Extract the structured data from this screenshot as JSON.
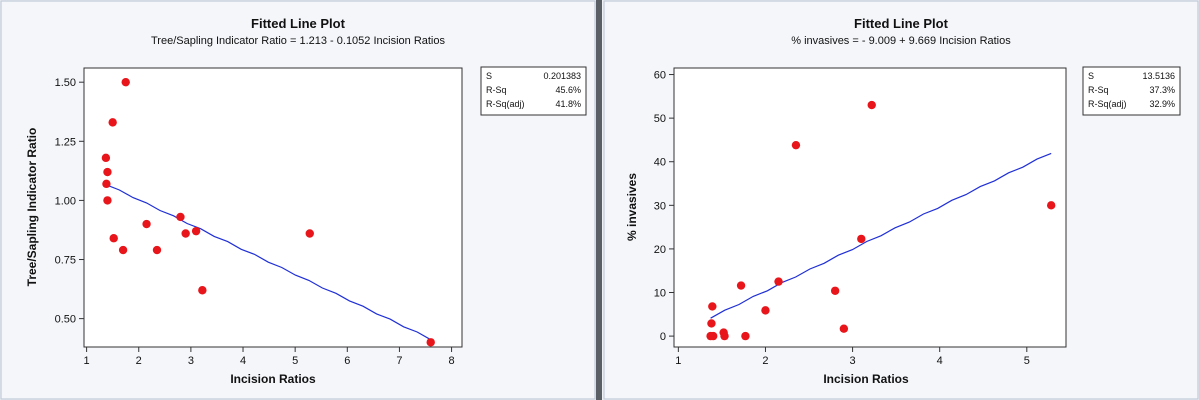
{
  "chart_data": [
    {
      "type": "scatter",
      "title": "Fitted Line Plot",
      "subtitle": "Tree/Sapling Indicator Ratio =  1.213 - 0.1052 Incision Ratios",
      "xlabel": "Incision Ratios",
      "ylabel": "Tree/Sapling Indicator Ratio",
      "xlim": [
        0.95,
        8.2
      ],
      "ylim": [
        0.38,
        1.56
      ],
      "xticks": [
        1,
        2,
        3,
        4,
        5,
        6,
        7,
        8
      ],
      "yticks": [
        0.5,
        0.75,
        1.0,
        1.25,
        1.5
      ],
      "ytick_labels": [
        "0.50",
        "0.75",
        "1.00",
        "1.25",
        "1.50"
      ],
      "points": [
        {
          "x": 1.37,
          "y": 1.18
        },
        {
          "x": 1.4,
          "y": 1.12
        },
        {
          "x": 1.38,
          "y": 1.07
        },
        {
          "x": 1.4,
          "y": 1.0
        },
        {
          "x": 1.5,
          "y": 1.33
        },
        {
          "x": 1.52,
          "y": 0.84
        },
        {
          "x": 1.7,
          "y": 0.79
        },
        {
          "x": 1.75,
          "y": 1.5
        },
        {
          "x": 2.15,
          "y": 0.9
        },
        {
          "x": 2.35,
          "y": 0.79
        },
        {
          "x": 2.8,
          "y": 0.93
        },
        {
          "x": 2.9,
          "y": 0.86
        },
        {
          "x": 3.1,
          "y": 0.87
        },
        {
          "x": 3.22,
          "y": 0.62
        },
        {
          "x": 5.28,
          "y": 0.86
        },
        {
          "x": 7.6,
          "y": 0.4
        }
      ],
      "fit": {
        "intercept": 1.213,
        "slope": -0.1052,
        "x_range": [
          1.37,
          7.6
        ]
      },
      "stats": [
        {
          "label": "S",
          "value": "0.201383"
        },
        {
          "label": "R-Sq",
          "value": "45.6%"
        },
        {
          "label": "R-Sq(adj)",
          "value": "41.8%"
        }
      ],
      "colors": {
        "points": "#e8161b",
        "line": "#1f2fd6"
      }
    },
    {
      "type": "scatter",
      "title": "Fitted Line Plot",
      "subtitle": "% invasives =  - 9.009 + 9.669 Incision Ratios",
      "xlabel": "Incision Ratios",
      "ylabel": "% invasives",
      "xlim": [
        0.95,
        5.45
      ],
      "ylim": [
        -2.5,
        61.5
      ],
      "xticks": [
        1,
        2,
        3,
        4,
        5
      ],
      "yticks": [
        0,
        10,
        20,
        30,
        40,
        50,
        60
      ],
      "ytick_labels": [
        "0",
        "10",
        "20",
        "30",
        "40",
        "50",
        "60"
      ],
      "points": [
        {
          "x": 1.37,
          "y": 0
        },
        {
          "x": 1.38,
          "y": 2.9
        },
        {
          "x": 1.39,
          "y": 6.8
        },
        {
          "x": 1.4,
          "y": 0
        },
        {
          "x": 1.52,
          "y": 0.8
        },
        {
          "x": 1.53,
          "y": 0
        },
        {
          "x": 1.72,
          "y": 11.6
        },
        {
          "x": 1.77,
          "y": 0
        },
        {
          "x": 2.0,
          "y": 5.9
        },
        {
          "x": 2.15,
          "y": 12.5
        },
        {
          "x": 2.35,
          "y": 43.8
        },
        {
          "x": 2.8,
          "y": 10.4
        },
        {
          "x": 2.9,
          "y": 1.7
        },
        {
          "x": 3.1,
          "y": 22.3
        },
        {
          "x": 3.22,
          "y": 53.0
        },
        {
          "x": 5.28,
          "y": 30.0
        }
      ],
      "fit": {
        "intercept": -9.009,
        "slope": 9.669,
        "x_range": [
          1.37,
          5.28
        ]
      },
      "stats": [
        {
          "label": "S",
          "value": "13.5136"
        },
        {
          "label": "R-Sq",
          "value": "37.3%"
        },
        {
          "label": "R-Sq(adj)",
          "value": "32.9%"
        }
      ],
      "colors": {
        "points": "#e8161b",
        "line": "#1f2fd6"
      }
    }
  ]
}
